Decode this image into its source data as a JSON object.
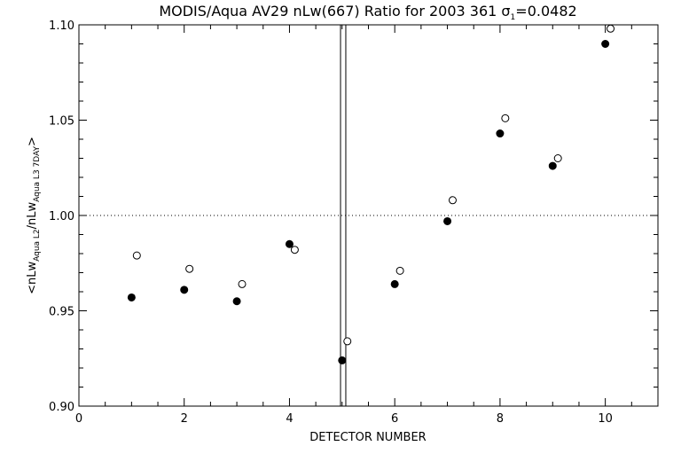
{
  "chart_data": {
    "type": "scatter",
    "title": "MODIS/Aqua AV29 nLw(667) Ratio for 2003 361 ",
    "title_sigma": "σ",
    "title_sigma_sub": "1",
    "title_sigma_value": "=0.0482",
    "xlabel": "DETECTOR NUMBER",
    "ylabel_parts": [
      "<nLw",
      "Aqua L2",
      "/nLw",
      "Aqua L3 7DAY",
      ">"
    ],
    "xlim": [
      0,
      11
    ],
    "ylim": [
      0.9,
      1.1
    ],
    "x_ticks": [
      "0",
      "2",
      "4",
      "6",
      "8",
      "10"
    ],
    "x_tick_values": [
      0,
      2,
      4,
      6,
      8,
      10
    ],
    "y_ticks": [
      "0.90",
      "0.95",
      "1.00",
      "1.05",
      "1.10"
    ],
    "y_tick_values": [
      0.9,
      0.95,
      1.0,
      1.05,
      1.1
    ],
    "reference_line_y": 1.0,
    "vertical_lines_x": [
      4.97,
      5.07
    ],
    "series": [
      {
        "marker": "filled-circle",
        "x": [
          1,
          2,
          3,
          4,
          5,
          6,
          7,
          8,
          9,
          10
        ],
        "y": [
          0.957,
          0.961,
          0.955,
          0.985,
          0.924,
          0.964,
          0.997,
          1.043,
          1.026,
          1.09
        ]
      },
      {
        "marker": "open-circle",
        "x": [
          1.1,
          2.1,
          3.1,
          4.1,
          5.1,
          6.1,
          7.1,
          8.1,
          9.1,
          10.1
        ],
        "y": [
          0.979,
          0.972,
          0.964,
          0.982,
          0.934,
          0.971,
          1.008,
          1.051,
          1.03,
          1.098
        ]
      }
    ]
  }
}
